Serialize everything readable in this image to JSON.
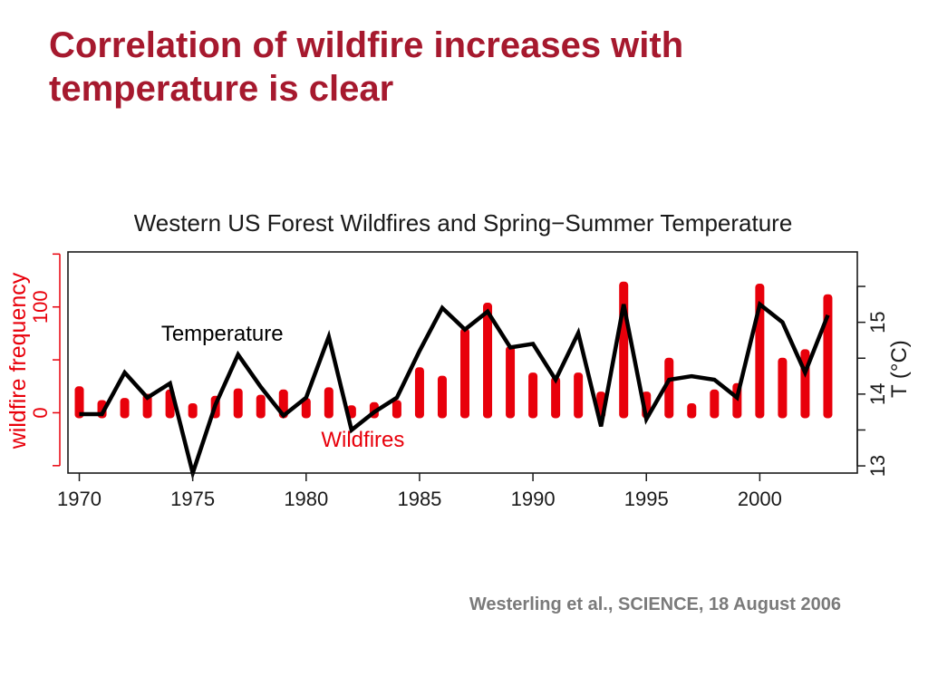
{
  "slide": {
    "title": "Correlation of wildfire increases with temperature is clear",
    "citation": "Westerling et al., SCIENCE, 18 August 2006"
  },
  "colors": {
    "title": "#a6192e",
    "wildfire_bars": "#e8000b",
    "temperature_line": "#000000",
    "citation": "#7a7a7a"
  },
  "chart_data": {
    "type": "bar+line",
    "title": "Western US Forest Wildfires and Spring−Summer Temperature",
    "xlabel": "",
    "x": [
      1970,
      1971,
      1972,
      1973,
      1974,
      1975,
      1976,
      1977,
      1978,
      1979,
      1980,
      1981,
      1982,
      1983,
      1984,
      1985,
      1986,
      1987,
      1988,
      1989,
      1990,
      1991,
      1992,
      1993,
      1994,
      1995,
      1996,
      1997,
      1998,
      1999,
      2000,
      2001,
      2002,
      2003
    ],
    "x_ticks": [
      "1970",
      "1975",
      "1980",
      "1985",
      "1990",
      "1995",
      "2000"
    ],
    "xlim": [
      1969.5,
      2004.3
    ],
    "grid": false,
    "series": [
      {
        "name": "Wildfires",
        "kind": "bar",
        "axis": "left",
        "values": [
          25,
          12,
          14,
          18,
          22,
          9,
          16,
          23,
          17,
          22,
          14,
          24,
          7,
          10,
          12,
          43,
          35,
          80,
          104,
          63,
          38,
          34,
          38,
          20,
          124,
          20,
          52,
          9,
          22,
          28,
          122,
          52,
          60,
          112
        ]
      },
      {
        "name": "Temperature",
        "kind": "line",
        "axis": "right",
        "values": [
          13.72,
          13.72,
          14.3,
          13.95,
          14.15,
          12.9,
          13.85,
          14.55,
          14.1,
          13.7,
          13.95,
          14.8,
          13.5,
          13.75,
          13.95,
          14.6,
          15.2,
          14.9,
          15.15,
          14.65,
          14.7,
          14.2,
          14.85,
          13.55,
          15.25,
          13.65,
          14.2,
          14.25,
          14.2,
          13.95,
          15.25,
          15.0,
          14.3,
          15.1
        ]
      }
    ],
    "left_axis": {
      "label": "wildfire frequency",
      "ticks": [
        0,
        100
      ],
      "ylim": [
        -57,
        152
      ]
    },
    "right_axis": {
      "label": "T (°C)",
      "ticks": [
        13,
        14,
        15
      ],
      "ylim": [
        12.9,
        15.98
      ]
    },
    "annotations": [
      {
        "text": "Temperature",
        "x": 1976.3,
        "y_left": 68,
        "color": "#000000"
      },
      {
        "text": "Wildfires",
        "x": 1982.5,
        "y_left": -32,
        "color": "#e8000b"
      }
    ]
  }
}
